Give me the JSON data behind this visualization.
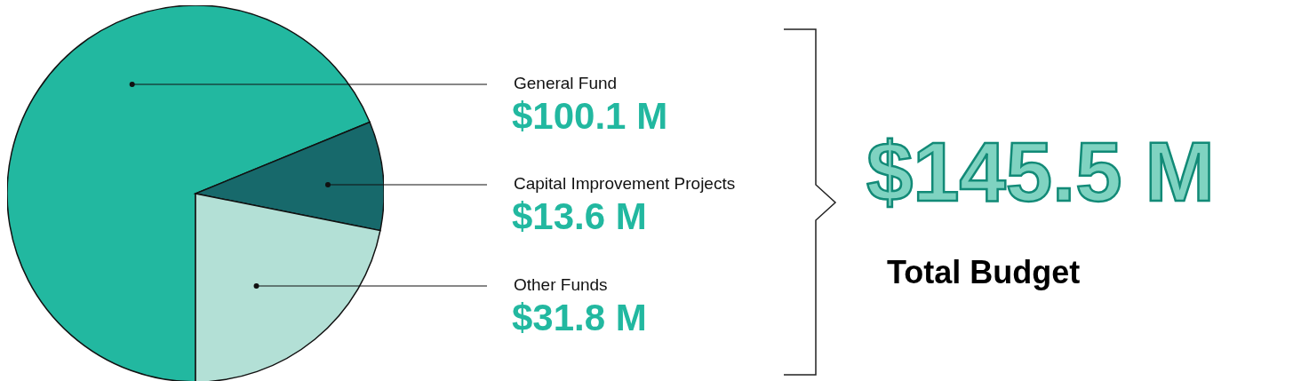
{
  "chart_data": {
    "type": "pie",
    "categories": [
      "General Fund",
      "Capital Improvement Projects",
      "Other Funds"
    ],
    "values": [
      100.1,
      13.6,
      31.8
    ],
    "colors": [
      "#22b8a0",
      "#17696b",
      "#b3e0d6"
    ],
    "value_labels": [
      "$100.1 M",
      "$13.6 M",
      "$31.8 M"
    ],
    "annotations": [
      "$145.5 M",
      "Total Budget"
    ]
  }
}
